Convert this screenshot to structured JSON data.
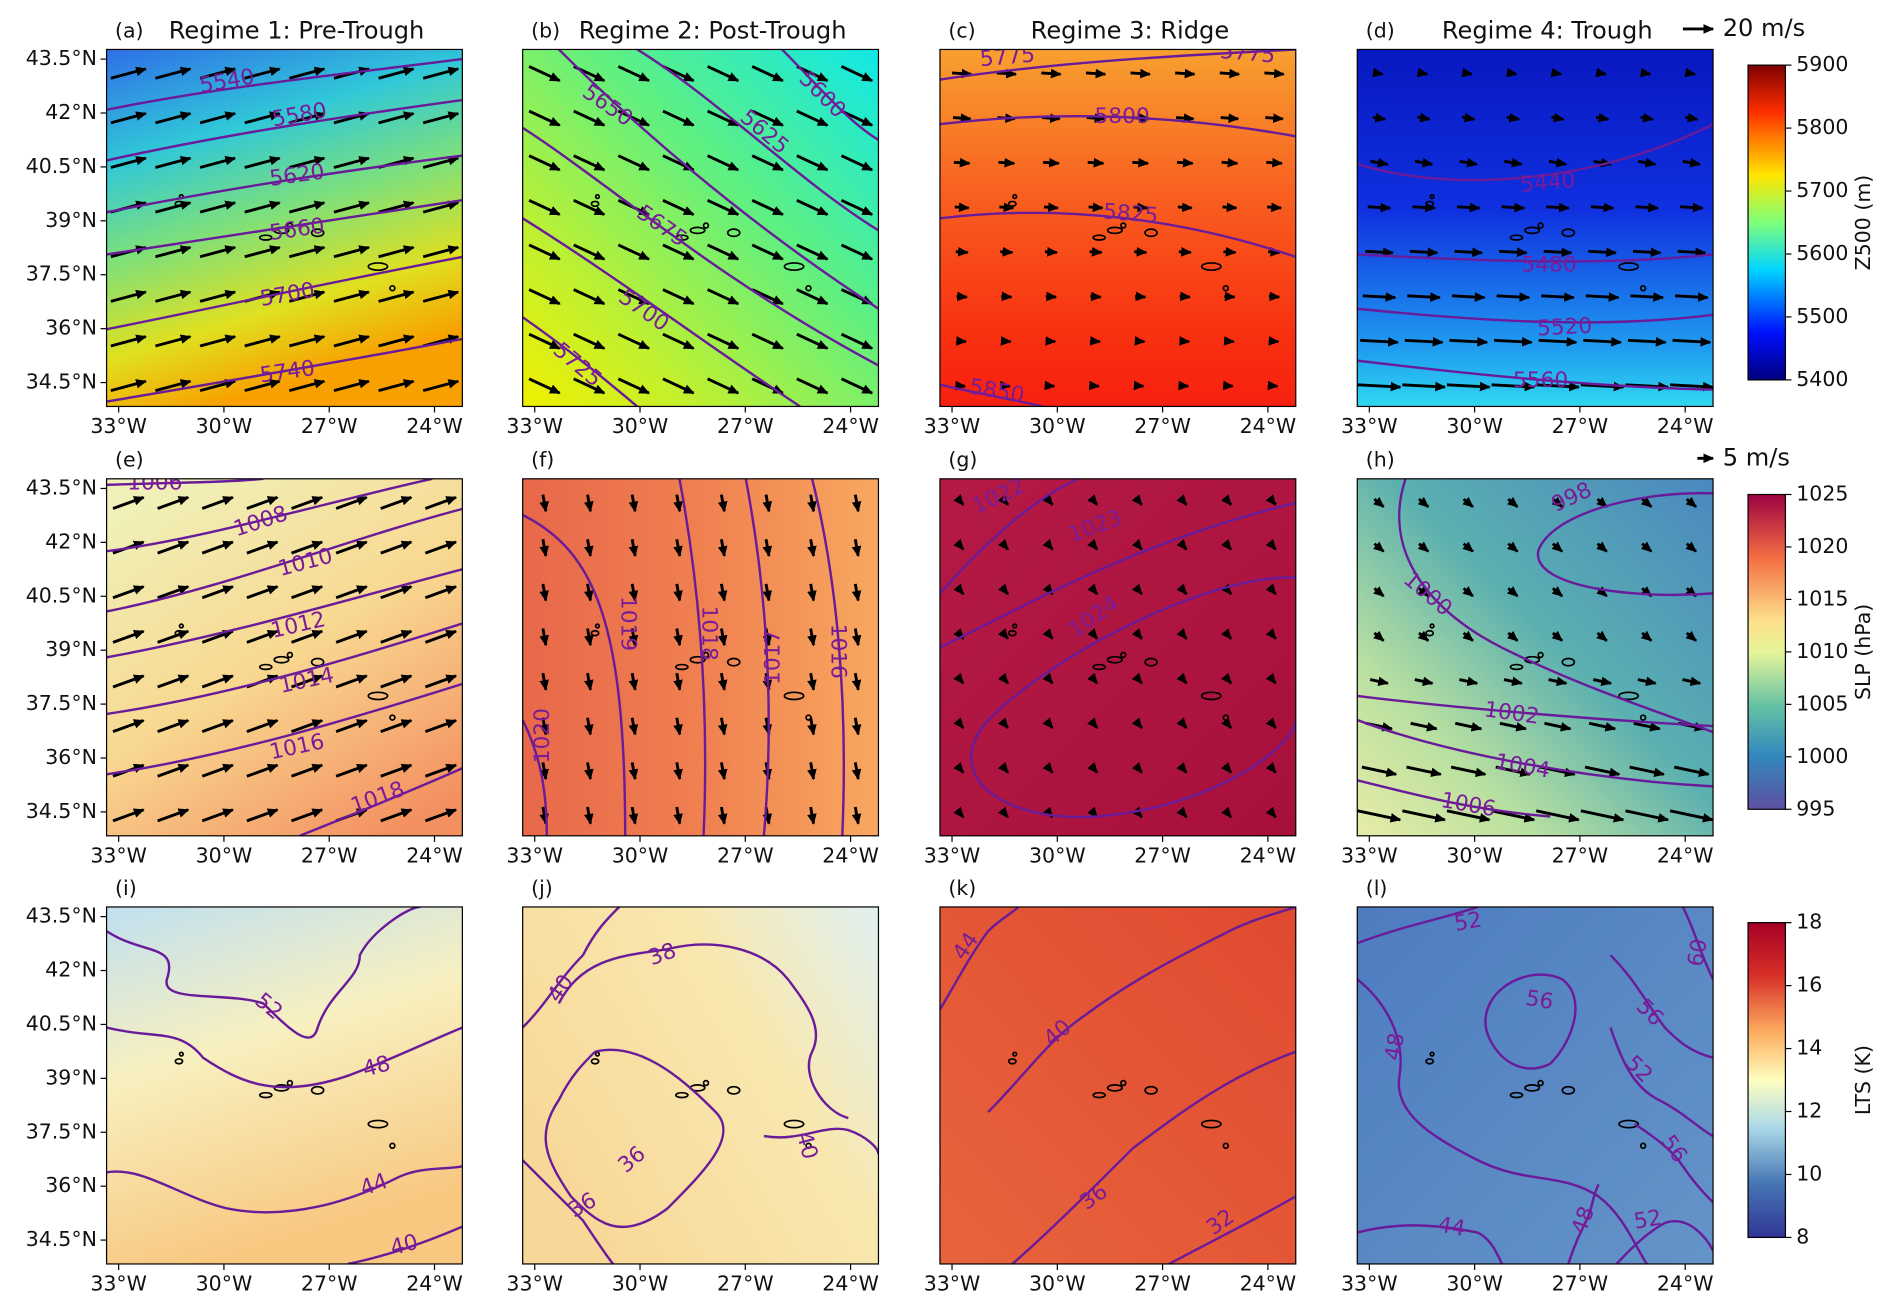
{
  "panels": [
    {
      "label": "(a)",
      "title": "Regime 1: Pre-Trough",
      "contours": [
        5540,
        5580,
        5620,
        5660,
        5700,
        5740
      ]
    },
    {
      "label": "(b)",
      "title": "Regime 2: Post-Trough",
      "contours": [
        5600,
        5625,
        5650,
        5675,
        5700,
        5725
      ]
    },
    {
      "label": "(c)",
      "title": "Regime 3: Ridge",
      "contours": [
        5775,
        5775,
        5800,
        5825,
        5850
      ]
    },
    {
      "label": "(d)",
      "title": "Regime 4: Trough",
      "contours": [
        5440,
        5480,
        5520,
        5560
      ]
    },
    {
      "label": "(e)",
      "contours": [
        1006,
        1008,
        1010,
        1012,
        1014,
        1016,
        1018
      ]
    },
    {
      "label": "(f)",
      "contours": [
        1020,
        1019,
        1018,
        1017,
        1016
      ]
    },
    {
      "label": "(g)",
      "contours": [
        1022,
        1023,
        1024
      ]
    },
    {
      "label": "(h)",
      "contours": [
        998,
        1000,
        1002,
        1004,
        1006
      ]
    },
    {
      "label": "(i)",
      "contours": [
        52,
        48,
        44,
        40
      ]
    },
    {
      "label": "(j)",
      "contours": [
        38,
        40,
        40,
        36,
        36
      ]
    },
    {
      "label": "(k)",
      "contours": [
        44,
        40,
        36,
        32
      ]
    },
    {
      "label": "(l)",
      "contours": [
        52,
        60,
        56,
        56,
        48,
        52,
        56,
        44,
        48,
        52
      ]
    }
  ],
  "xticks": [
    "33°W",
    "30°W",
    "27°W",
    "24°W"
  ],
  "yticks": [
    "43.5°N",
    "42°N",
    "40.5°N",
    "39°N",
    "37.5°N",
    "36°N",
    "34.5°N"
  ],
  "colorbars": [
    {
      "label": "Z500 (m)",
      "range": [
        5400,
        5900
      ],
      "ticks": [
        5400,
        5500,
        5600,
        5700,
        5800,
        5900
      ]
    },
    {
      "label": "SLP (hPa)",
      "range": [
        995,
        1025
      ],
      "ticks": [
        995,
        1000,
        1005,
        1010,
        1015,
        1020,
        1025
      ]
    },
    {
      "label": "LTS (K)",
      "range": [
        8,
        18
      ],
      "ticks": [
        8,
        10,
        12,
        14,
        16,
        18
      ]
    }
  ],
  "vector_keys": [
    "20 m/s",
    "5 m/s"
  ]
}
